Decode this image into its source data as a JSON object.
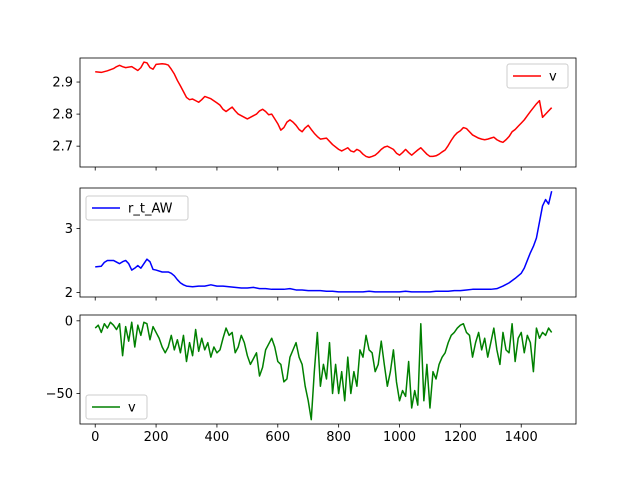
{
  "chart_data": [
    {
      "type": "line",
      "xlim": [
        -50,
        1580
      ],
      "ylim": [
        2.635,
        2.975
      ],
      "xticks": [
        0,
        200,
        400,
        600,
        800,
        1000,
        1200,
        1400
      ],
      "yticks": [
        2.7,
        2.8,
        2.9
      ],
      "ytick_labels": [
        "2.7",
        "2.8",
        "2.9"
      ],
      "legend_loc": "upper-right",
      "grid": false,
      "series": [
        {
          "name": "v",
          "color": "#ff0000",
          "x": [
            0,
            20,
            40,
            60,
            70,
            80,
            90,
            100,
            120,
            140,
            150,
            160,
            170,
            180,
            190,
            200,
            220,
            230,
            240,
            250,
            260,
            270,
            280,
            290,
            300,
            310,
            320,
            330,
            340,
            350,
            360,
            380,
            400,
            410,
            420,
            430,
            440,
            450,
            460,
            470,
            480,
            500,
            510,
            520,
            530,
            540,
            550,
            560,
            570,
            580,
            590,
            600,
            610,
            620,
            630,
            640,
            650,
            660,
            670,
            680,
            690,
            700,
            710,
            720,
            730,
            740,
            760,
            780,
            800,
            810,
            820,
            830,
            840,
            850,
            860,
            870,
            880,
            890,
            900,
            910,
            920,
            930,
            940,
            950,
            960,
            970,
            980,
            990,
            1000,
            1010,
            1020,
            1030,
            1040,
            1050,
            1060,
            1070,
            1080,
            1090,
            1100,
            1110,
            1120,
            1130,
            1140,
            1150,
            1160,
            1170,
            1180,
            1190,
            1200,
            1210,
            1220,
            1230,
            1240,
            1250,
            1260,
            1270,
            1280,
            1290,
            1300,
            1310,
            1320,
            1330,
            1340,
            1350,
            1360,
            1370,
            1380,
            1390,
            1400,
            1410,
            1420,
            1430,
            1440,
            1450,
            1460,
            1470,
            1480,
            1490,
            1500
          ],
          "y": [
            2.932,
            2.93,
            2.935,
            2.942,
            2.948,
            2.952,
            2.948,
            2.945,
            2.948,
            2.936,
            2.945,
            2.962,
            2.96,
            2.945,
            2.94,
            2.955,
            2.957,
            2.956,
            2.953,
            2.94,
            2.925,
            2.905,
            2.888,
            2.87,
            2.852,
            2.845,
            2.847,
            2.842,
            2.837,
            2.845,
            2.855,
            2.848,
            2.835,
            2.828,
            2.815,
            2.808,
            2.815,
            2.822,
            2.81,
            2.8,
            2.795,
            2.785,
            2.79,
            2.795,
            2.8,
            2.81,
            2.815,
            2.808,
            2.798,
            2.8,
            2.785,
            2.77,
            2.75,
            2.758,
            2.775,
            2.782,
            2.775,
            2.765,
            2.752,
            2.745,
            2.757,
            2.765,
            2.752,
            2.74,
            2.73,
            2.722,
            2.725,
            2.705,
            2.69,
            2.685,
            2.69,
            2.695,
            2.685,
            2.682,
            2.69,
            2.685,
            2.675,
            2.668,
            2.665,
            2.668,
            2.672,
            2.68,
            2.69,
            2.697,
            2.7,
            2.695,
            2.69,
            2.678,
            2.672,
            2.68,
            2.69,
            2.68,
            2.672,
            2.68,
            2.688,
            2.695,
            2.685,
            2.675,
            2.668,
            2.668,
            2.67,
            2.675,
            2.682,
            2.688,
            2.702,
            2.718,
            2.732,
            2.742,
            2.748,
            2.758,
            2.755,
            2.745,
            2.735,
            2.73,
            2.725,
            2.722,
            2.72,
            2.722,
            2.725,
            2.728,
            2.72,
            2.715,
            2.712,
            2.72,
            2.73,
            2.745,
            2.752,
            2.762,
            2.772,
            2.782,
            2.795,
            2.808,
            2.82,
            2.832,
            2.842,
            2.79,
            2.8,
            2.81,
            2.82
          ]
        }
      ]
    },
    {
      "type": "line",
      "xlim": [
        -50,
        1580
      ],
      "ylim": [
        1.93,
        3.63
      ],
      "xticks": [
        0,
        200,
        400,
        600,
        800,
        1000,
        1200,
        1400
      ],
      "yticks": [
        2,
        3
      ],
      "ytick_labels": [
        "2",
        "3"
      ],
      "legend_loc": "upper-left",
      "grid": false,
      "series": [
        {
          "name": "r_t_AW",
          "color": "#0000ff",
          "x": [
            0,
            20,
            30,
            40,
            60,
            80,
            90,
            100,
            110,
            120,
            130,
            140,
            150,
            160,
            170,
            180,
            190,
            200,
            220,
            240,
            250,
            260,
            270,
            280,
            290,
            300,
            320,
            340,
            360,
            380,
            400,
            420,
            440,
            460,
            480,
            500,
            520,
            540,
            560,
            580,
            600,
            620,
            640,
            660,
            680,
            700,
            720,
            740,
            760,
            780,
            800,
            820,
            840,
            860,
            880,
            900,
            920,
            940,
            960,
            980,
            1000,
            1020,
            1040,
            1060,
            1080,
            1100,
            1120,
            1140,
            1160,
            1180,
            1200,
            1220,
            1240,
            1260,
            1280,
            1300,
            1320,
            1340,
            1360,
            1380,
            1400,
            1410,
            1420,
            1430,
            1440,
            1450,
            1460,
            1470,
            1480,
            1490,
            1500
          ],
          "y": [
            2.4,
            2.41,
            2.47,
            2.5,
            2.5,
            2.45,
            2.48,
            2.5,
            2.45,
            2.35,
            2.38,
            2.42,
            2.38,
            2.45,
            2.52,
            2.48,
            2.36,
            2.35,
            2.32,
            2.32,
            2.3,
            2.26,
            2.2,
            2.15,
            2.12,
            2.1,
            2.09,
            2.1,
            2.1,
            2.12,
            2.1,
            2.1,
            2.09,
            2.08,
            2.07,
            2.07,
            2.08,
            2.06,
            2.06,
            2.05,
            2.05,
            2.05,
            2.06,
            2.04,
            2.04,
            2.03,
            2.03,
            2.03,
            2.02,
            2.02,
            2.01,
            2.01,
            2.01,
            2.01,
            2.01,
            2.02,
            2.01,
            2.01,
            2.01,
            2.01,
            2.01,
            2.02,
            2.01,
            2.01,
            2.01,
            2.01,
            2.02,
            2.02,
            2.02,
            2.03,
            2.03,
            2.04,
            2.05,
            2.05,
            2.05,
            2.05,
            2.06,
            2.1,
            2.15,
            2.22,
            2.3,
            2.38,
            2.5,
            2.62,
            2.72,
            2.85,
            3.1,
            3.35,
            3.45,
            3.38,
            3.58
          ]
        }
      ]
    },
    {
      "type": "line",
      "xlim": [
        -50,
        1580
      ],
      "ylim": [
        -71,
        4
      ],
      "xticks": [
        0,
        200,
        400,
        600,
        800,
        1000,
        1200,
        1400
      ],
      "xtick_labels": [
        "0",
        "200",
        "400",
        "600",
        "800",
        "1000",
        "1200",
        "1400"
      ],
      "yticks": [
        0,
        -50
      ],
      "ytick_labels": [
        "0",
        "−50"
      ],
      "legend_loc": "lower-left",
      "grid": false,
      "series": [
        {
          "name": "v",
          "color": "#008000",
          "x": [
            0,
            10,
            20,
            30,
            40,
            50,
            60,
            70,
            80,
            90,
            100,
            110,
            120,
            130,
            140,
            150,
            160,
            170,
            180,
            190,
            200,
            210,
            220,
            230,
            240,
            250,
            260,
            270,
            280,
            290,
            300,
            310,
            320,
            330,
            340,
            350,
            360,
            370,
            380,
            390,
            400,
            410,
            420,
            430,
            440,
            450,
            460,
            470,
            480,
            490,
            500,
            510,
            520,
            530,
            540,
            550,
            560,
            570,
            580,
            590,
            600,
            610,
            620,
            630,
            640,
            650,
            660,
            670,
            680,
            690,
            700,
            710,
            720,
            730,
            740,
            750,
            760,
            770,
            780,
            790,
            800,
            810,
            820,
            830,
            840,
            850,
            860,
            870,
            880,
            890,
            900,
            910,
            920,
            930,
            940,
            950,
            960,
            970,
            980,
            990,
            1000,
            1010,
            1020,
            1030,
            1040,
            1050,
            1060,
            1070,
            1080,
            1090,
            1100,
            1110,
            1120,
            1130,
            1140,
            1150,
            1160,
            1170,
            1180,
            1190,
            1200,
            1210,
            1220,
            1230,
            1240,
            1250,
            1260,
            1270,
            1280,
            1290,
            1300,
            1310,
            1320,
            1330,
            1340,
            1350,
            1360,
            1370,
            1380,
            1390,
            1400,
            1410,
            1420,
            1430,
            1440,
            1450,
            1460,
            1470,
            1480,
            1490,
            1500
          ],
          "y": [
            -5,
            -3,
            -8,
            -2,
            -5,
            -1,
            -3,
            -6,
            -2,
            -24,
            -4,
            -14,
            -1,
            -18,
            -3,
            -10,
            -1,
            -2,
            -13,
            -4,
            -8,
            -12,
            -18,
            -22,
            -18,
            -10,
            -20,
            -13,
            -22,
            -10,
            -28,
            -15,
            -24,
            -6,
            -21,
            -12,
            -20,
            -15,
            -25,
            -18,
            -22,
            -20,
            -12,
            -5,
            -10,
            -8,
            -22,
            -18,
            -10,
            -15,
            -24,
            -30,
            -26,
            -22,
            -38,
            -32,
            -20,
            -16,
            -12,
            -18,
            -28,
            -30,
            -42,
            -40,
            -25,
            -20,
            -15,
            -25,
            -30,
            -45,
            -55,
            -68,
            -35,
            -8,
            -45,
            -30,
            -40,
            -15,
            -50,
            -30,
            -50,
            -35,
            -55,
            -25,
            -50,
            -35,
            -45,
            -20,
            -25,
            -10,
            -20,
            -22,
            -35,
            -30,
            -14,
            -30,
            -45,
            -35,
            -20,
            -42,
            -55,
            -48,
            -52,
            -28,
            -60,
            -48,
            -58,
            -2,
            -55,
            -30,
            -60,
            -35,
            -40,
            -30,
            -25,
            -22,
            -15,
            -10,
            -8,
            -5,
            -3,
            -2,
            -8,
            -10,
            -25,
            -15,
            -8,
            -20,
            -12,
            -25,
            -15,
            -5,
            -20,
            -30,
            -8,
            -20,
            -22,
            -2,
            -28,
            -12,
            -8,
            -22,
            -10,
            -15,
            -35,
            -5,
            -12,
            -8,
            -10,
            -5,
            -8
          ]
        }
      ]
    }
  ]
}
